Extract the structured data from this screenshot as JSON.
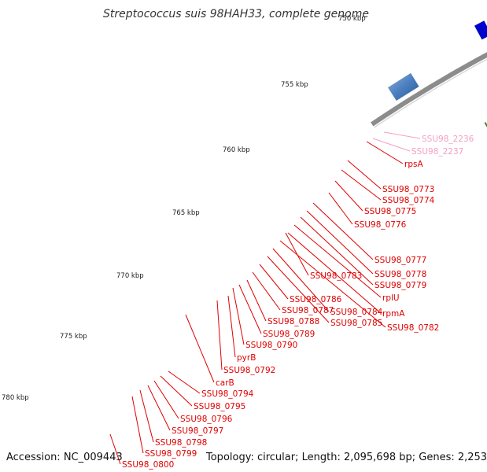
{
  "title": "Streptococcus suis 98HAH33, complete genome",
  "accession": "Accession: NC_009443",
  "summary": "Topology: circular; Length: 2,095,698 bp; Genes: 2,253",
  "ticks": [
    {
      "label": "750 kbp"
    },
    {
      "label": "755 kbp"
    },
    {
      "label": "760 kbp"
    },
    {
      "label": "765 kbp"
    },
    {
      "label": "770 kbp"
    },
    {
      "label": "775 kbp"
    },
    {
      "label": "780 kbp"
    }
  ],
  "gene_labels": [
    {
      "name": "SSU98_2236",
      "color": "#f4a0c4"
    },
    {
      "name": "SSU98_2237",
      "color": "#f4a0c4"
    },
    {
      "name": "rpsA",
      "color": "#e00000"
    },
    {
      "name": "SSU98_0773",
      "color": "#e00000"
    },
    {
      "name": "SSU98_0774",
      "color": "#e00000"
    },
    {
      "name": "SSU98_0775",
      "color": "#e00000"
    },
    {
      "name": "SSU98_0776",
      "color": "#e00000"
    },
    {
      "name": "SSU98_0777",
      "color": "#e00000"
    },
    {
      "name": "SSU98_0778",
      "color": "#e00000"
    },
    {
      "name": "SSU98_0779",
      "color": "#e00000"
    },
    {
      "name": "SSU98_0783",
      "color": "#e00000"
    },
    {
      "name": "rplU",
      "color": "#e00000"
    },
    {
      "name": "rpmA",
      "color": "#e00000"
    },
    {
      "name": "SSU98_0782",
      "color": "#e00000"
    },
    {
      "name": "SSU98_0784",
      "color": "#e00000"
    },
    {
      "name": "SSU98_0785",
      "color": "#e00000"
    },
    {
      "name": "SSU98_0786",
      "color": "#e00000"
    },
    {
      "name": "SSU98_0787",
      "color": "#e00000"
    },
    {
      "name": "SSU98_0788",
      "color": "#e00000"
    },
    {
      "name": "SSU98_0789",
      "color": "#e00000"
    },
    {
      "name": "SSU98_0790",
      "color": "#e00000"
    },
    {
      "name": "pyrB",
      "color": "#e00000"
    },
    {
      "name": "SSU98_0792",
      "color": "#e00000"
    },
    {
      "name": "carB",
      "color": "#e00000"
    },
    {
      "name": "SSU98_0794",
      "color": "#e00000"
    },
    {
      "name": "SSU98_0795",
      "color": "#e00000"
    },
    {
      "name": "SSU98_0796",
      "color": "#e00000"
    },
    {
      "name": "SSU98_0797",
      "color": "#e00000"
    },
    {
      "name": "SSU98_0798",
      "color": "#e00000"
    },
    {
      "name": "SSU98_0799",
      "color": "#e00000"
    },
    {
      "name": "SSU98_0800",
      "color": "#e00000"
    }
  ],
  "colors": {
    "backbone": "#8c8c8c",
    "cds": "#ff0000",
    "rna": "#1060ff",
    "tick": "#2a8a2a",
    "label_line": "#ff0000"
  }
}
